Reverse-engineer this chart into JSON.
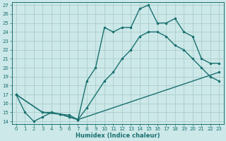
{
  "xlabel": "Humidex (Indice chaleur)",
  "ylabel": "",
  "bg_color": "#cce8e8",
  "line_color": "#1a7070",
  "grid_color": "#b0d0d0",
  "xlim": [
    -0.5,
    23.5
  ],
  "ylim": [
    13.7,
    27.3
  ],
  "xticks": [
    0,
    1,
    2,
    3,
    4,
    5,
    6,
    7,
    8,
    9,
    10,
    11,
    12,
    13,
    14,
    15,
    16,
    17,
    18,
    19,
    20,
    21,
    22,
    23
  ],
  "yticks": [
    14,
    15,
    16,
    17,
    18,
    19,
    20,
    21,
    22,
    23,
    24,
    25,
    26,
    27
  ],
  "series": [
    {
      "x": [
        0,
        1,
        2,
        3,
        4,
        5,
        6,
        7,
        8,
        9,
        10,
        11,
        12,
        13,
        14,
        15,
        16,
        17,
        18,
        19,
        20,
        21,
        22,
        23
      ],
      "y": [
        17,
        15,
        14,
        14.5,
        15,
        14.8,
        14.5,
        14.2,
        18.5,
        20,
        24.5,
        24,
        24.5,
        24.5,
        26.6,
        27,
        25,
        25,
        25.5,
        24,
        23.5,
        21,
        20.5,
        20.5
      ]
    },
    {
      "x": [
        0,
        3,
        4,
        5,
        6,
        7,
        8,
        10,
        11,
        12,
        13,
        14,
        15,
        16,
        17,
        18,
        19,
        20,
        21,
        22,
        23
      ],
      "y": [
        17,
        15,
        15,
        14.8,
        14.7,
        14.2,
        15.5,
        18.5,
        19.5,
        21,
        22,
        23.5,
        24,
        24,
        23.5,
        22.5,
        22,
        21,
        20,
        19,
        18.5
      ]
    },
    {
      "x": [
        0,
        3,
        5,
        7,
        23
      ],
      "y": [
        17,
        15,
        14.8,
        14.2,
        19.5
      ]
    }
  ]
}
